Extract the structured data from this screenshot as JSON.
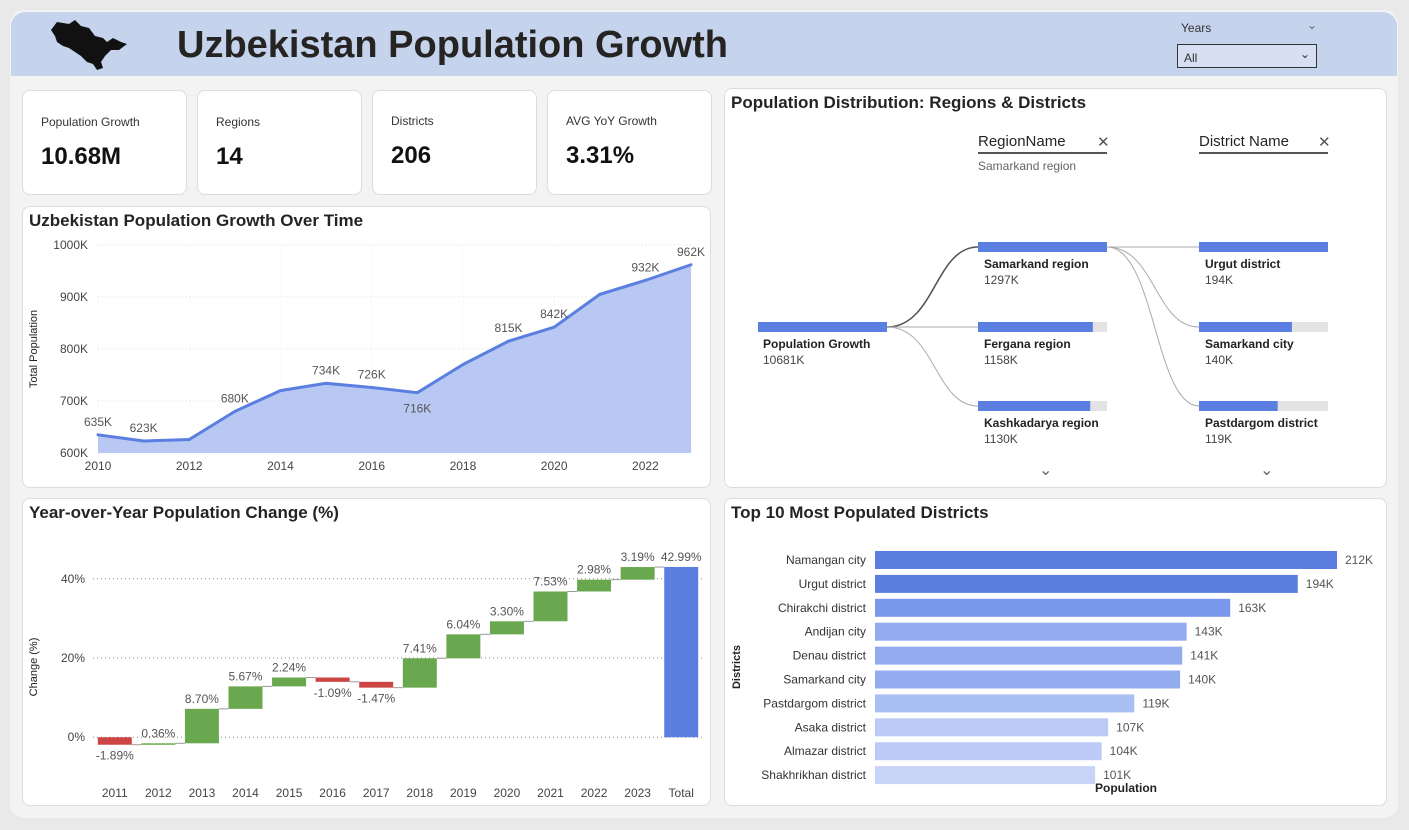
{
  "header": {
    "title": "Uzbekistan Population Growth",
    "years_label": "Years",
    "years_value": "All",
    "colors": {
      "header_bg": "#c5d3ec",
      "accent": "#5b7fe0"
    }
  },
  "kpis": [
    {
      "label": "Population Growth",
      "value": "10.68M"
    },
    {
      "label": "Regions",
      "value": "14"
    },
    {
      "label": "Districts",
      "value": "206"
    },
    {
      "label": "AVG YoY Growth",
      "value": "3.31%"
    }
  ],
  "decomp": {
    "title": "Population Distribution: Regions & Districts",
    "col1_header": "RegionName",
    "col1_filter": "Samarkand region",
    "col2_header": "District Name",
    "root": {
      "name": "Population Growth",
      "value": "10681K"
    },
    "regions": [
      {
        "name": "Samarkand region",
        "value": "1297K",
        "fill": 1.0
      },
      {
        "name": "Fergana region",
        "value": "1158K",
        "fill": 0.89
      },
      {
        "name": "Kashkadarya region",
        "value": "1130K",
        "fill": 0.87
      }
    ],
    "districts": [
      {
        "name": "Urgut district",
        "value": "194K",
        "fill": 1.0
      },
      {
        "name": "Samarkand city",
        "value": "140K",
        "fill": 0.72
      },
      {
        "name": "Pastdargom district",
        "value": "119K",
        "fill": 0.61
      }
    ]
  },
  "chart_data": [
    {
      "type": "area",
      "title": "Uzbekistan Population Growth Over Time",
      "ylabel": "Total Population",
      "x": [
        2010,
        2011,
        2012,
        2013,
        2014,
        2015,
        2016,
        2017,
        2018,
        2019,
        2020,
        2021,
        2022,
        2023
      ],
      "values": [
        635,
        623,
        626,
        680,
        720,
        734,
        726,
        716,
        770,
        815,
        842,
        905,
        932,
        962
      ],
      "labels": [
        "635K",
        "623K",
        "",
        "680K",
        "",
        "734K",
        "726K",
        "716K",
        "",
        "815K",
        "842K",
        "",
        "932K",
        "962K"
      ],
      "xticks": [
        "2010",
        "2012",
        "2014",
        "2016",
        "2018",
        "2020",
        "2022"
      ],
      "yticks": [
        "600K",
        "700K",
        "800K",
        "900K",
        "1000K"
      ],
      "ylim": [
        600,
        1000
      ],
      "unit": "K"
    },
    {
      "type": "bar",
      "subtype": "waterfall",
      "title": "Year-over-Year Population Change (%)",
      "ylabel": "Change (%)",
      "categories": [
        "2011",
        "2012",
        "2013",
        "2014",
        "2015",
        "2016",
        "2017",
        "2018",
        "2019",
        "2020",
        "2021",
        "2022",
        "2023",
        "Total"
      ],
      "values": [
        -1.89,
        0.36,
        8.7,
        5.67,
        2.24,
        -1.09,
        -1.47,
        7.41,
        6.04,
        3.3,
        7.53,
        2.98,
        3.19,
        42.99
      ],
      "labels": [
        "-1.89%",
        "0.36%",
        "8.70%",
        "5.67%",
        "2.24%",
        "-1.09%",
        "-1.47%",
        "7.41%",
        "6.04%",
        "3.30%",
        "7.53%",
        "2.98%",
        "3.19%",
        "42.99%"
      ],
      "yticks": [
        "0%",
        "20%",
        "40%"
      ],
      "ylim": [
        -6,
        45
      ],
      "colors": {
        "increase": "#6aa84f",
        "decrease": "#cc4444",
        "total": "#5b7fe0"
      }
    },
    {
      "type": "bar",
      "orientation": "horizontal",
      "title": "Top 10 Most Populated Districts",
      "xlabel": "Population",
      "ylabel": "Districts",
      "categories": [
        "Namangan city",
        "Urgut district",
        "Chirakchi district",
        "Andijan city",
        "Denau district",
        "Samarkand city",
        "Pastdargom district",
        "Asaka district",
        "Almazar district",
        "Shakhrikhan district"
      ],
      "values": [
        212,
        194,
        163,
        143,
        141,
        140,
        119,
        107,
        104,
        101
      ],
      "labels": [
        "212K",
        "194K",
        "163K",
        "143K",
        "141K",
        "140K",
        "119K",
        "107K",
        "104K",
        "101K"
      ]
    }
  ]
}
